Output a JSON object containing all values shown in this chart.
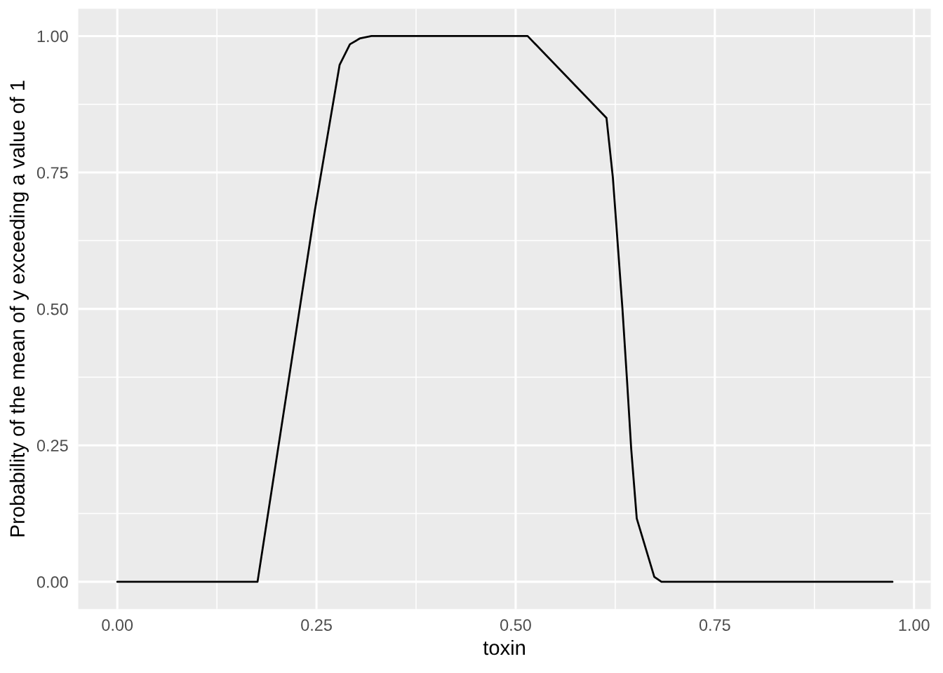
{
  "chart_data": {
    "type": "line",
    "xlabel": "toxin",
    "ylabel": "Probability of the mean of y exceeding a value of 1",
    "series": [
      {
        "color": "#000000",
        "x": [
          0.0,
          0.176,
          0.248,
          0.279,
          0.292,
          0.305,
          0.319,
          0.515,
          0.614,
          0.622,
          0.628,
          0.634,
          0.64,
          0.645,
          0.652,
          0.674,
          0.683,
          0.973
        ],
        "values": [
          0.0,
          0.0,
          0.681,
          0.947,
          0.985,
          0.996,
          1.0,
          1.0,
          0.85,
          0.741,
          0.621,
          0.501,
          0.364,
          0.244,
          0.116,
          0.009,
          0.0,
          0.0
        ]
      }
    ],
    "xlim": [
      -0.049,
      1.021
    ],
    "ylim": [
      -0.05,
      1.05
    ],
    "xticks": [
      {
        "value": 0,
        "label": "0.00"
      },
      {
        "value": 0.25,
        "label": "0.25"
      },
      {
        "value": 0.5,
        "label": "0.50"
      },
      {
        "value": 0.75,
        "label": "0.75"
      },
      {
        "value": 1,
        "label": "1.00"
      }
    ],
    "yticks": [
      {
        "value": 0,
        "label": "0.00"
      },
      {
        "value": 0.25,
        "label": "0.25"
      },
      {
        "value": 0.5,
        "label": "0.50"
      },
      {
        "value": 0.75,
        "label": "0.75"
      },
      {
        "value": 1,
        "label": "1.00"
      }
    ],
    "grid": true,
    "line_style": "solid"
  }
}
